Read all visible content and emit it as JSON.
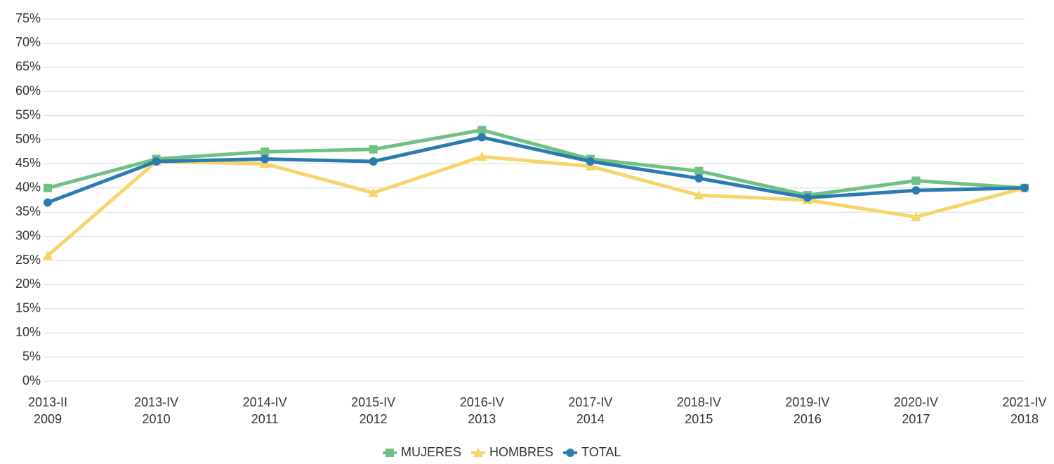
{
  "chart_data": {
    "type": "line",
    "categories": [
      [
        "2013-II",
        "2009"
      ],
      [
        "2013-IV",
        "2010"
      ],
      [
        "2014-IV",
        "2011"
      ],
      [
        "2015-IV",
        "2012"
      ],
      [
        "2016-IV",
        "2013"
      ],
      [
        "2017-IV",
        "2014"
      ],
      [
        "2018-IV",
        "2015"
      ],
      [
        "2019-IV",
        "2016"
      ],
      [
        "2020-IV",
        "2017"
      ],
      [
        "2021-IV",
        "2018"
      ]
    ],
    "series": [
      {
        "name": "MUJERES",
        "color": "#6fc183",
        "marker": "square",
        "values": [
          40,
          46,
          47.5,
          48,
          52,
          46,
          43.5,
          38.5,
          41.5,
          40
        ]
      },
      {
        "name": "HOMBRES",
        "color": "#f7d46a",
        "marker": "triangle",
        "values": [
          26,
          45.5,
          45,
          39,
          46.5,
          44.5,
          38.5,
          37.5,
          34,
          40
        ]
      },
      {
        "name": "TOTAL",
        "color": "#2b7bb3",
        "marker": "circle",
        "values": [
          37,
          45.5,
          46,
          45.5,
          50.5,
          45.5,
          42,
          38,
          39.5,
          40
        ]
      }
    ],
    "ylim": [
      0,
      75
    ],
    "yticks": [
      {
        "value": 0,
        "label": "0%"
      },
      {
        "value": 5,
        "label": "5%"
      },
      {
        "value": 10,
        "label": "10%"
      },
      {
        "value": 15,
        "label": "15%"
      },
      {
        "value": 20,
        "label": "20%"
      },
      {
        "value": 25,
        "label": "25%"
      },
      {
        "value": 30,
        "label": "30%"
      },
      {
        "value": 35,
        "label": "35%"
      },
      {
        "value": 40,
        "label": "40%"
      },
      {
        "value": 45,
        "label": "45%"
      },
      {
        "value": 50,
        "label": "50%"
      },
      {
        "value": 55,
        "label": "55%"
      },
      {
        "value": 60,
        "label": "60%"
      },
      {
        "value": 65,
        "label": "65%"
      },
      {
        "value": 70,
        "label": "70%"
      },
      {
        "value": 75,
        "label": "75%"
      }
    ],
    "grid": true,
    "legend": "bottom"
  }
}
